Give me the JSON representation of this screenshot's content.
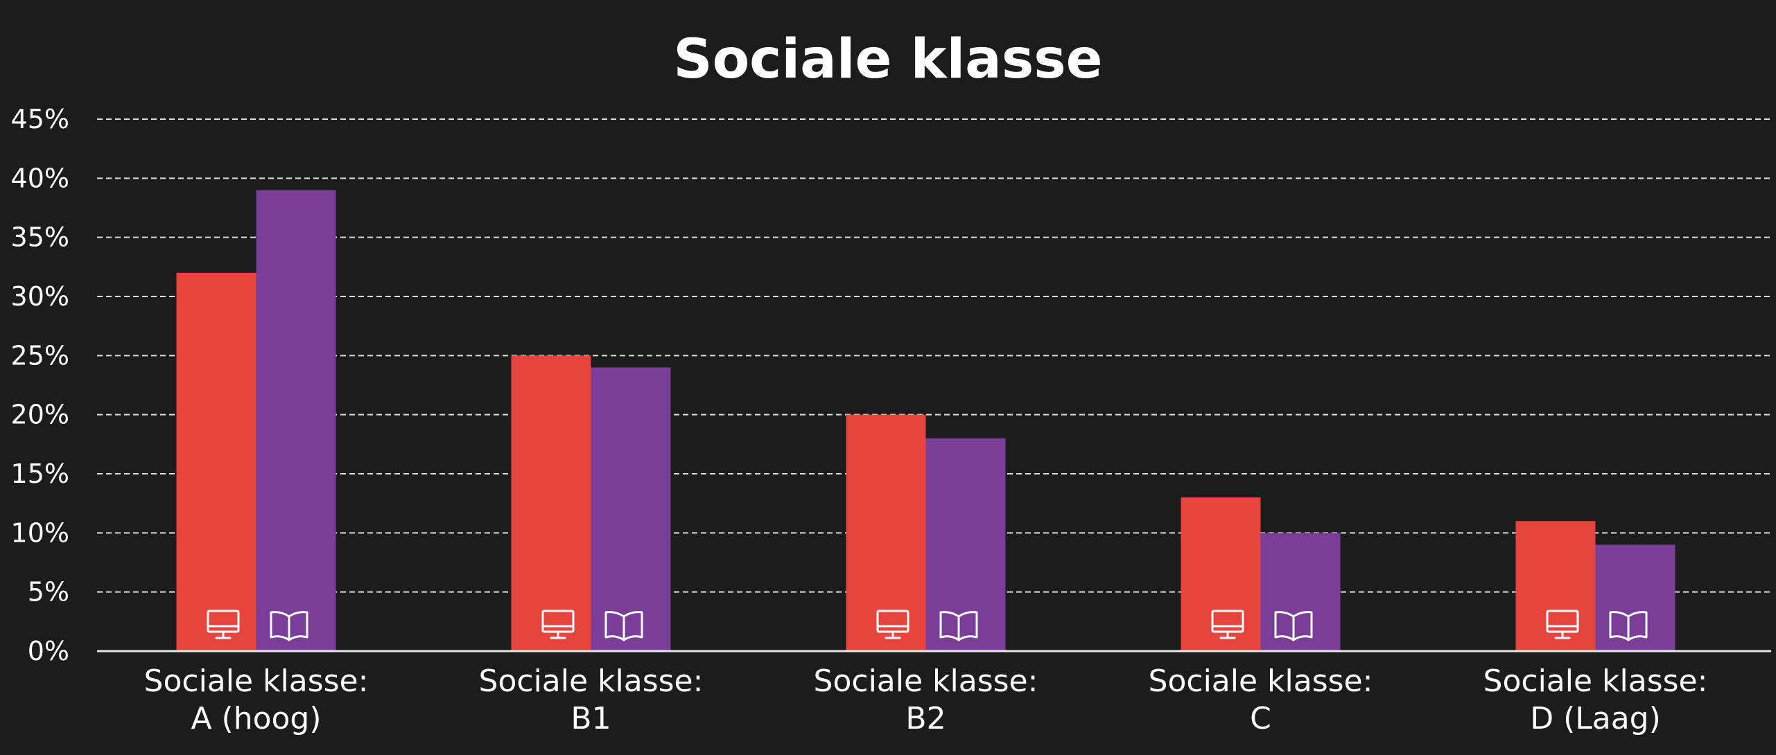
{
  "chart_data": {
    "type": "bar",
    "title": "Sociale klasse",
    "categories": [
      [
        "Sociale klasse:",
        "A (hoog)"
      ],
      [
        "Sociale klasse:",
        "B1"
      ],
      [
        "Sociale klasse:",
        "B2"
      ],
      [
        "Sociale klasse:",
        "C"
      ],
      [
        "Sociale klasse:",
        "D (Laag)"
      ]
    ],
    "series": [
      {
        "values": [
          32,
          25,
          20,
          13,
          11
        ],
        "color": "#e5453d",
        "icon": "monitor-icon"
      },
      {
        "values": [
          39,
          24,
          18,
          10,
          9
        ],
        "color": "#7a3d98",
        "icon": "open-book-icon"
      }
    ],
    "yticks": [
      "0%",
      "5%",
      "10%",
      "15%",
      "20%",
      "25%",
      "30%",
      "35%",
      "40%",
      "45%"
    ],
    "ylim": [
      0,
      45
    ],
    "grid": true,
    "legend": "none",
    "background": "#1c1c1c"
  }
}
